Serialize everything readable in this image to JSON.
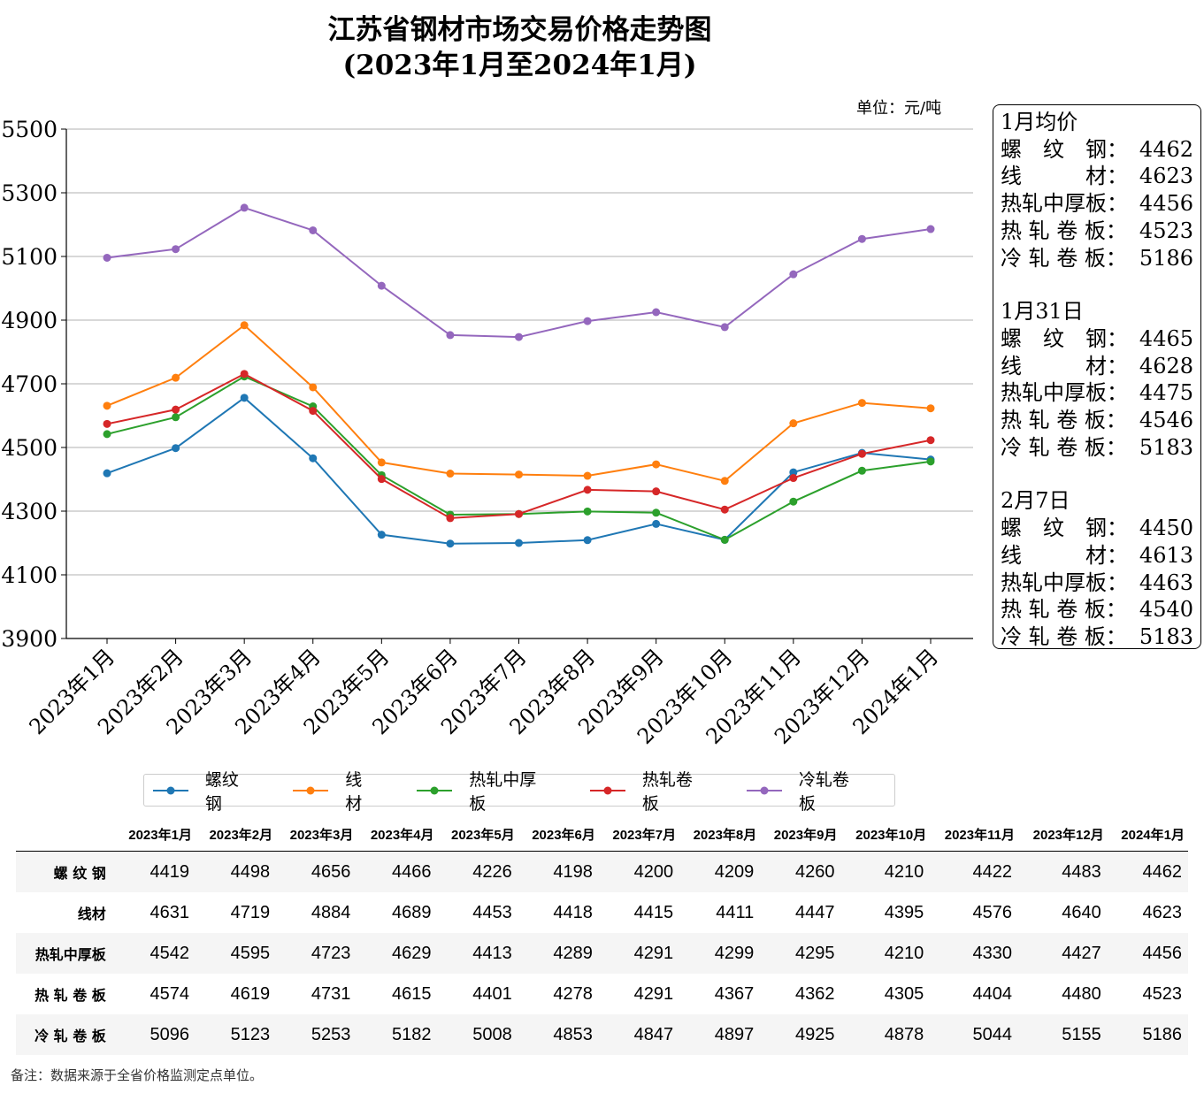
{
  "chart_data": {
    "type": "line",
    "title": "江苏省钢材市场交易价格走势图",
    "subtitle": "(2023年1月至2024年1月)",
    "unit": "单位：元/吨",
    "categories": [
      "2023年1月",
      "2023年2月",
      "2023年3月",
      "2023年4月",
      "2023年5月",
      "2023年6月",
      "2023年7月",
      "2023年8月",
      "2023年9月",
      "2023年10月",
      "2023年11月",
      "2023年12月",
      "2024年1月"
    ],
    "ylim": [
      3900,
      5500
    ],
    "yticks": [
      3900,
      4100,
      4300,
      4500,
      4700,
      4900,
      5100,
      5300,
      5500
    ],
    "grid": "horizontal",
    "legend_placement": "bottom",
    "series": [
      {
        "name": "螺纹钢",
        "color": "#1f77b4",
        "values": [
          4419,
          4498,
          4656,
          4466,
          4226,
          4198,
          4200,
          4209,
          4260,
          4210,
          4422,
          4483,
          4462
        ]
      },
      {
        "name": "线材",
        "color": "#ff7f0e",
        "values": [
          4631,
          4719,
          4884,
          4689,
          4453,
          4418,
          4415,
          4411,
          4447,
          4395,
          4576,
          4640,
          4623
        ]
      },
      {
        "name": "热轧中厚板",
        "color": "#2ca02c",
        "values": [
          4542,
          4595,
          4723,
          4629,
          4413,
          4289,
          4291,
          4299,
          4295,
          4210,
          4330,
          4427,
          4456
        ]
      },
      {
        "name": "热轧卷板",
        "color": "#d62728",
        "values": [
          4574,
          4619,
          4731,
          4615,
          4401,
          4278,
          4291,
          4367,
          4362,
          4305,
          4404,
          4480,
          4523
        ]
      },
      {
        "name": "冷轧卷板",
        "color": "#9467bd",
        "values": [
          5096,
          5123,
          5253,
          5182,
          5008,
          4853,
          4847,
          4897,
          4925,
          4878,
          5044,
          5155,
          5186
        ]
      }
    ]
  },
  "sidebox": {
    "sections": [
      {
        "heading": "1月均价",
        "rows": [
          [
            "螺　纹　钢：",
            "4462"
          ],
          [
            "线　　　材：",
            "4623"
          ],
          [
            "热轧中厚板：",
            "4456"
          ],
          [
            "热 轧 卷 板：",
            "4523"
          ],
          [
            "冷 轧 卷 板：",
            "5186"
          ]
        ]
      },
      {
        "heading": "1月31日",
        "rows": [
          [
            "螺　纹　钢：",
            "4465"
          ],
          [
            "线　　　材：",
            "4628"
          ],
          [
            "热轧中厚板：",
            "4475"
          ],
          [
            "热 轧 卷 板：",
            "4546"
          ],
          [
            "冷 轧 卷 板：",
            "5183"
          ]
        ]
      },
      {
        "heading": "2月7日",
        "rows": [
          [
            "螺　纹　钢：",
            "4450"
          ],
          [
            "线　　　材：",
            "4613"
          ],
          [
            "热轧中厚板：",
            "4463"
          ],
          [
            "热 轧 卷 板：",
            "4540"
          ],
          [
            "冷 轧 卷 板：",
            "5183"
          ]
        ]
      }
    ]
  },
  "table": {
    "row_labels": [
      "螺 纹 钢",
      "线材",
      "热轧中厚板",
      "热 轧 卷 板",
      "冷 轧 卷 板"
    ]
  },
  "note": "备注：数据来源于全省价格监测定点单位。"
}
